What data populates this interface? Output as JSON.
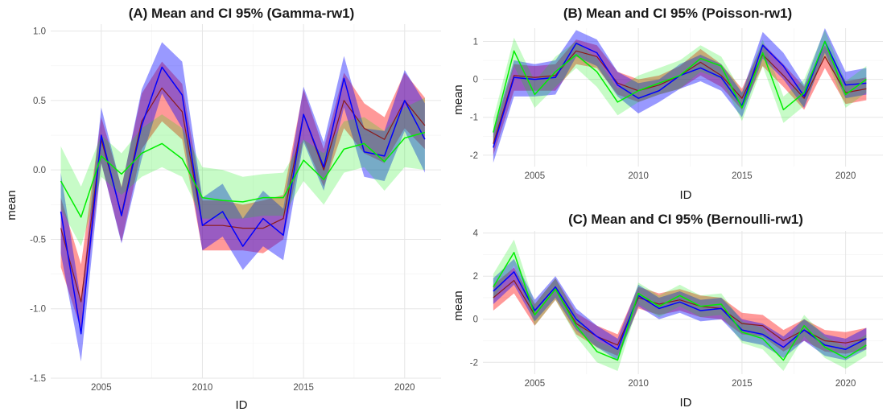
{
  "colors": {
    "red": "#ff0000",
    "blue": "#0000ff",
    "green": "#00ee00",
    "median_line": "#8b1a1a"
  },
  "chart_data": [
    {
      "type": "area",
      "title": "(A) Mean and CI 95% (Gamma-rw1)",
      "xlabel": "ID",
      "ylabel": "mean",
      "xlim": [
        2002.5,
        2021.8
      ],
      "ylim": [
        -1.5,
        1.05
      ],
      "xticks": [
        2005,
        2010,
        2015,
        2020
      ],
      "xtick_labels": [
        "2005",
        "2010",
        "2015",
        "2020"
      ],
      "yticks": [
        -1.5,
        -1.0,
        -0.5,
        0.0,
        0.5,
        1.0
      ],
      "ytick_labels": [
        "-1.5",
        "-1.0",
        "-0.5",
        "0.0",
        "0.5",
        "1.0"
      ],
      "x": [
        2003,
        2004,
        2005,
        2006,
        2007,
        2008,
        2009,
        2010,
        2011,
        2012,
        2013,
        2014,
        2015,
        2016,
        2017,
        2018,
        2019,
        2020,
        2021
      ],
      "series": [
        {
          "name": "red",
          "mean": [
            -0.42,
            -0.95,
            0.22,
            -0.32,
            0.35,
            0.59,
            0.42,
            -0.4,
            -0.4,
            -0.42,
            -0.42,
            -0.35,
            0.4,
            0.0,
            0.5,
            0.3,
            0.22,
            0.5,
            0.32
          ],
          "lower": [
            -0.7,
            -1.15,
            0.05,
            -0.52,
            0.15,
            0.35,
            0.22,
            -0.58,
            -0.58,
            -0.58,
            -0.6,
            -0.5,
            0.22,
            -0.12,
            0.3,
            0.12,
            0.05,
            0.3,
            0.15
          ],
          "upper": [
            -0.2,
            -0.68,
            0.38,
            -0.12,
            0.55,
            0.78,
            0.62,
            -0.22,
            -0.22,
            -0.25,
            -0.22,
            -0.18,
            0.58,
            0.15,
            0.7,
            0.48,
            0.38,
            0.7,
            0.52
          ]
        },
        {
          "name": "blue",
          "mean": [
            -0.3,
            -1.18,
            0.25,
            -0.33,
            0.32,
            0.74,
            0.54,
            -0.4,
            -0.3,
            -0.55,
            -0.35,
            -0.47,
            0.4,
            0.02,
            0.66,
            0.13,
            0.1,
            0.5,
            0.22
          ],
          "lower": [
            -0.6,
            -1.38,
            0.05,
            -0.53,
            0.08,
            0.55,
            0.3,
            -0.58,
            -0.48,
            -0.72,
            -0.55,
            -0.65,
            0.2,
            -0.15,
            0.45,
            -0.05,
            -0.08,
            0.28,
            -0.02
          ],
          "upper": [
            -0.02,
            -0.95,
            0.45,
            -0.13,
            0.58,
            0.92,
            0.78,
            -0.2,
            -0.1,
            -0.35,
            -0.15,
            -0.28,
            0.6,
            0.2,
            0.82,
            0.3,
            0.28,
            0.72,
            0.48
          ]
        },
        {
          "name": "green",
          "mean": [
            -0.08,
            -0.34,
            0.1,
            -0.03,
            0.12,
            0.19,
            0.08,
            -0.2,
            -0.22,
            -0.23,
            -0.2,
            -0.2,
            0.07,
            -0.07,
            0.15,
            0.19,
            0.06,
            0.23,
            0.27
          ],
          "lower": [
            -0.28,
            -0.55,
            -0.05,
            -0.18,
            -0.05,
            0.02,
            -0.05,
            -0.35,
            -0.35,
            -0.35,
            -0.33,
            -0.33,
            -0.08,
            -0.25,
            -0.02,
            0.02,
            -0.15,
            0.02,
            0.0
          ],
          "upper": [
            0.17,
            -0.12,
            0.25,
            0.12,
            0.3,
            0.4,
            0.3,
            0.02,
            0.0,
            -0.05,
            -0.03,
            -0.02,
            0.22,
            0.12,
            0.35,
            0.38,
            0.28,
            0.45,
            0.52
          ]
        }
      ]
    },
    {
      "type": "area",
      "title": "(B) Mean and CI 95% (Poisson-rw1)",
      "xlabel": "ID",
      "ylabel": "mean",
      "xlim": [
        2002.5,
        2021.8
      ],
      "ylim": [
        -2.3,
        1.35
      ],
      "xticks": [
        2005,
        2010,
        2015,
        2020
      ],
      "xtick_labels": [
        "2005",
        "2010",
        "2015",
        "2020"
      ],
      "yticks": [
        -2,
        -1,
        0,
        1
      ],
      "ytick_labels": [
        "-2",
        "-1",
        "0",
        "1"
      ],
      "x": [
        2003,
        2004,
        2005,
        2006,
        2007,
        2008,
        2009,
        2010,
        2011,
        2012,
        2013,
        2014,
        2015,
        2016,
        2017,
        2018,
        2019,
        2020,
        2021
      ],
      "series": [
        {
          "name": "red",
          "mean": [
            -1.7,
            0.1,
            0.05,
            0.1,
            0.75,
            0.6,
            -0.1,
            -0.3,
            -0.15,
            0.1,
            0.45,
            0.1,
            -0.5,
            0.65,
            0.1,
            -0.5,
            0.6,
            -0.35,
            -0.25
          ],
          "lower": [
            -2.0,
            -0.3,
            -0.3,
            -0.3,
            0.4,
            0.3,
            -0.4,
            -0.6,
            -0.4,
            -0.25,
            0.1,
            -0.2,
            -0.8,
            0.35,
            -0.2,
            -0.8,
            0.3,
            -0.65,
            -0.55
          ],
          "upper": [
            -1.4,
            0.4,
            0.35,
            0.4,
            1.05,
            0.9,
            0.2,
            0.0,
            0.1,
            0.35,
            0.8,
            0.4,
            -0.25,
            0.95,
            0.4,
            -0.2,
            0.9,
            -0.05,
            0.05
          ]
        },
        {
          "name": "blue",
          "mean": [
            -1.8,
            0.05,
            0.0,
            0.05,
            0.95,
            0.7,
            -0.15,
            -0.5,
            -0.3,
            0.1,
            0.3,
            0.05,
            -0.7,
            0.9,
            0.35,
            -0.45,
            1.0,
            -0.15,
            -0.1
          ],
          "lower": [
            -2.2,
            -0.45,
            -0.45,
            -0.4,
            0.6,
            0.35,
            -0.45,
            -0.9,
            -0.6,
            -0.25,
            -0.05,
            -0.3,
            -1.0,
            0.55,
            0.0,
            -0.75,
            0.7,
            -0.5,
            -0.4
          ],
          "upper": [
            -1.35,
            0.5,
            0.4,
            0.5,
            1.3,
            1.05,
            0.2,
            -0.1,
            0.0,
            0.4,
            0.65,
            0.4,
            -0.35,
            1.25,
            0.7,
            -0.15,
            1.35,
            0.2,
            0.3
          ]
        },
        {
          "name": "green",
          "mean": [
            -1.4,
            0.75,
            -0.4,
            0.2,
            0.65,
            0.2,
            -0.6,
            -0.3,
            -0.1,
            0.1,
            0.55,
            0.35,
            -0.75,
            0.7,
            -0.8,
            -0.35,
            1.0,
            -0.4,
            0.0
          ],
          "lower": [
            -1.75,
            0.35,
            -0.75,
            -0.2,
            0.3,
            -0.2,
            -0.95,
            -0.6,
            -0.4,
            -0.25,
            0.2,
            0.0,
            -1.1,
            0.35,
            -1.15,
            -0.7,
            0.65,
            -0.75,
            -0.35
          ],
          "upper": [
            -1.05,
            1.1,
            -0.05,
            0.6,
            1.0,
            0.55,
            -0.25,
            0.1,
            0.3,
            0.5,
            0.9,
            0.6,
            -0.35,
            1.05,
            -0.45,
            0.0,
            1.3,
            -0.05,
            0.35
          ]
        }
      ]
    },
    {
      "type": "area",
      "title": "(C) Mean and CI 95% (Bernoulli-rw1)",
      "xlabel": "ID",
      "ylabel": "mean",
      "xlim": [
        2002.5,
        2021.8
      ],
      "ylim": [
        -2.55,
        4.1
      ],
      "xticks": [
        2005,
        2010,
        2015,
        2020
      ],
      "xtick_labels": [
        "2005",
        "2010",
        "2015",
        "2020"
      ],
      "yticks": [
        -2,
        0,
        2,
        4
      ],
      "ytick_labels": [
        "-2",
        "0",
        "2",
        "4"
      ],
      "x": [
        2003,
        2004,
        2005,
        2006,
        2007,
        2008,
        2009,
        2010,
        2011,
        2012,
        2013,
        2014,
        2015,
        2016,
        2017,
        2018,
        2019,
        2020,
        2021
      ],
      "series": [
        {
          "name": "red",
          "mean": [
            1.0,
            1.8,
            0.2,
            1.4,
            -0.2,
            -0.8,
            -1.2,
            1.0,
            0.7,
            0.9,
            0.6,
            0.5,
            -0.2,
            -0.3,
            -1.0,
            -0.5,
            -1.0,
            -1.1,
            -0.9
          ],
          "lower": [
            0.4,
            1.2,
            -0.3,
            0.9,
            -0.7,
            -1.3,
            -1.7,
            0.5,
            0.2,
            0.4,
            0.1,
            0.0,
            -0.7,
            -0.8,
            -1.5,
            -1.0,
            -1.5,
            -1.6,
            -1.4
          ],
          "upper": [
            1.6,
            2.4,
            0.7,
            1.9,
            0.3,
            -0.3,
            -0.7,
            1.5,
            1.2,
            1.4,
            1.1,
            1.0,
            0.3,
            0.2,
            -0.5,
            0.0,
            -0.5,
            -0.6,
            -0.4
          ]
        },
        {
          "name": "blue",
          "mean": [
            1.3,
            2.2,
            0.4,
            1.5,
            0.0,
            -0.8,
            -1.4,
            1.1,
            0.5,
            0.8,
            0.4,
            0.5,
            -0.5,
            -0.7,
            -1.3,
            -0.5,
            -1.2,
            -1.4,
            -0.9
          ],
          "lower": [
            0.7,
            1.6,
            -0.1,
            1.0,
            -0.5,
            -1.3,
            -1.9,
            0.6,
            0.0,
            0.3,
            -0.1,
            0.0,
            -1.0,
            -1.2,
            -1.8,
            -1.0,
            -1.7,
            -1.9,
            -1.4
          ],
          "upper": [
            1.9,
            2.8,
            0.9,
            2.0,
            0.5,
            -0.3,
            -0.9,
            1.6,
            1.0,
            1.3,
            0.9,
            1.0,
            0.0,
            -0.2,
            -0.8,
            0.0,
            -0.7,
            -0.9,
            -0.4
          ]
        },
        {
          "name": "green",
          "mean": [
            1.5,
            3.1,
            0.2,
            1.4,
            -0.3,
            -1.5,
            -1.9,
            1.2,
            0.6,
            1.1,
            0.6,
            0.7,
            -0.6,
            -0.9,
            -1.9,
            -0.3,
            -1.3,
            -1.8,
            -1.2
          ],
          "lower": [
            0.9,
            2.5,
            -0.3,
            0.9,
            -0.8,
            -2.0,
            -2.4,
            0.7,
            0.1,
            0.6,
            0.1,
            0.2,
            -1.1,
            -1.4,
            -2.4,
            -0.8,
            -1.8,
            -2.3,
            -1.7
          ],
          "upper": [
            2.1,
            3.7,
            0.7,
            1.9,
            0.2,
            -1.0,
            -1.4,
            1.7,
            1.1,
            1.6,
            1.1,
            1.2,
            -0.1,
            -0.4,
            -1.4,
            0.2,
            -0.8,
            -1.3,
            -0.7
          ]
        }
      ]
    }
  ]
}
